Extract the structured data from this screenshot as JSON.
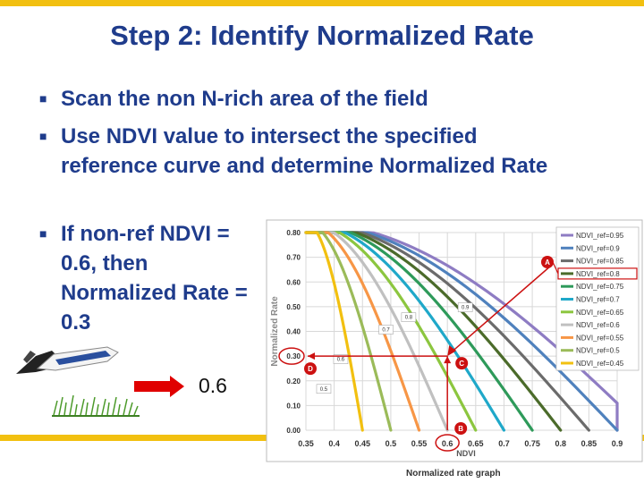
{
  "slide": {
    "title": "Step 2: Identify Normalized Rate",
    "bullets": [
      "Scan the non N-rich area of the field",
      "Use NDVI value to intersect the specified reference curve and determine Normalized Rate",
      "If non-ref NDVI = 0.6, then Normalized Rate = 0.3"
    ],
    "arrow_value": "0.6",
    "caption": "Normalized rate graph"
  },
  "colors": {
    "title": "#1f3c8c",
    "accent_bar": "#f2c010",
    "arrow": "#e00000"
  },
  "chart_data": {
    "type": "line",
    "xlabel": "NDVI",
    "ylabel": "Normalized Rate",
    "xlim": [
      0.35,
      0.9
    ],
    "ylim": [
      0,
      0.8
    ],
    "xticks": [
      "0.35",
      "0.4",
      "0.45",
      "0.5",
      "0.55",
      "0.6",
      "0.65",
      "0.7",
      "0.75",
      "0.8",
      "0.85",
      "0.9"
    ],
    "yticks": [
      "0.00",
      "0.10",
      "0.20",
      "0.30",
      "0.40",
      "0.50",
      "0.60",
      "0.70",
      "0.80"
    ],
    "grid": true,
    "legend_position": "top-right",
    "series": [
      {
        "name": "NDVI_ref=0.95",
        "ref": 0.95,
        "color": "#8e7cc3"
      },
      {
        "name": "NDVI_ref=0.9",
        "ref": 0.9,
        "color": "#4f81bd"
      },
      {
        "name": "NDVI_ref=0.85",
        "ref": 0.85,
        "color": "#6b6b6b"
      },
      {
        "name": "NDVI_ref=0.8",
        "ref": 0.8,
        "color": "#4b6b2a"
      },
      {
        "name": "NDVI_ref=0.75",
        "ref": 0.75,
        "color": "#2e9a5a"
      },
      {
        "name": "NDVI_ref=0.7",
        "ref": 0.7,
        "color": "#1fa8c9"
      },
      {
        "name": "NDVI_ref=0.65",
        "ref": 0.65,
        "color": "#8cc63f"
      },
      {
        "name": "NDVI_ref=0.6",
        "ref": 0.6,
        "color": "#c0c0c0"
      },
      {
        "name": "NDVI_ref=0.55",
        "ref": 0.55,
        "color": "#f79646"
      },
      {
        "name": "NDVI_ref=0.5",
        "ref": 0.5,
        "color": "#9bbb59"
      },
      {
        "name": "NDVI_ref=0.45",
        "ref": 0.45,
        "color": "#f2c010"
      }
    ],
    "curve_labels": [
      "0.9",
      "0.8",
      "0.7",
      "0.6",
      "0.5"
    ],
    "annotations": [
      {
        "label": "A",
        "target": "NDVI_ref=0.8"
      },
      {
        "label": "B",
        "x": 0.6,
        "y": 0.0
      },
      {
        "label": "C",
        "x": 0.6,
        "y": 0.3
      },
      {
        "label": "D",
        "x": 0.35,
        "y": 0.3
      }
    ],
    "caption": "Normalized rate graph"
  }
}
